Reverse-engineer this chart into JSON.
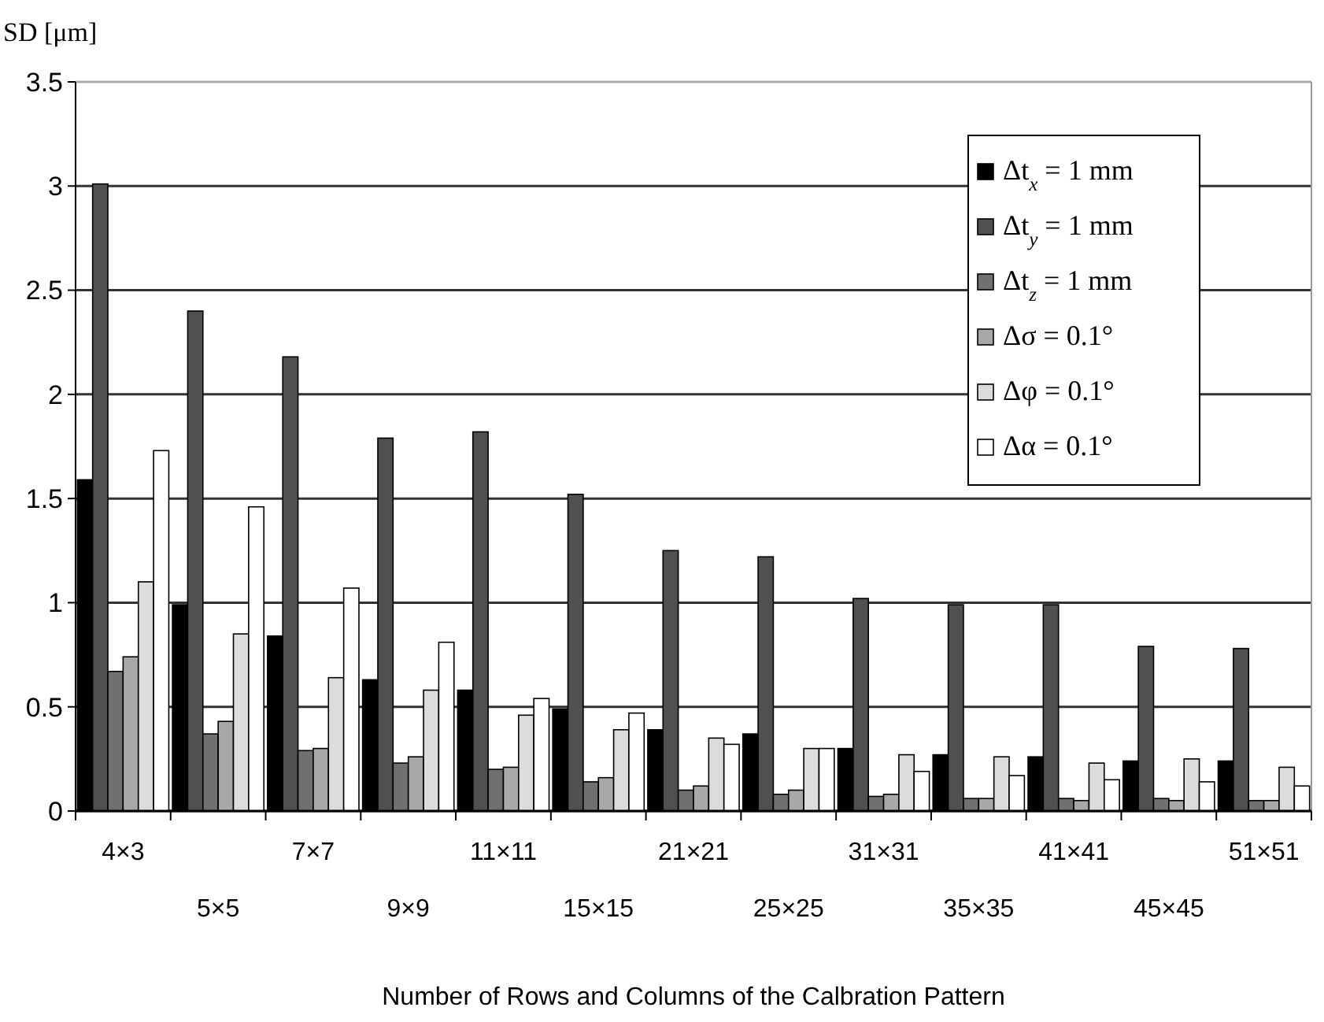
{
  "chart_data": {
    "type": "bar",
    "xlabel": "Number of Rows and Columns of the Calbration Pattern",
    "ylabel": "SD [μm]",
    "categories": [
      "4×3",
      "5×5",
      "7×7",
      "9×9",
      "11×11",
      "15×15",
      "21×21",
      "25×25",
      "31×31",
      "35×35",
      "41×41",
      "45×45",
      "51×51"
    ],
    "series": [
      {
        "name": "Δt$_{x}$ = 1 mm",
        "color": "#000000",
        "values": [
          1.59,
          0.99,
          0.84,
          0.63,
          0.58,
          0.49,
          0.39,
          0.37,
          0.3,
          0.27,
          0.26,
          0.24,
          0.24
        ]
      },
      {
        "name": "Δt$_{y}$ = 1 mm",
        "color": "#505050",
        "values": [
          3.01,
          2.4,
          2.18,
          1.79,
          1.82,
          1.52,
          1.25,
          1.22,
          1.02,
          0.99,
          0.99,
          0.79,
          0.78
        ]
      },
      {
        "name": "Δt$_{z}$ = 1 mm",
        "color": "#707070",
        "values": [
          0.67,
          0.37,
          0.29,
          0.23,
          0.2,
          0.14,
          0.1,
          0.08,
          0.07,
          0.06,
          0.06,
          0.06,
          0.05
        ]
      },
      {
        "name": "Δσ = 0.1°",
        "color": "#a8a8a8",
        "values": [
          0.74,
          0.43,
          0.3,
          0.26,
          0.21,
          0.16,
          0.12,
          0.1,
          0.08,
          0.06,
          0.05,
          0.05,
          0.05
        ]
      },
      {
        "name": "Δφ = 0.1°",
        "color": "#dcdcdc",
        "values": [
          1.1,
          0.85,
          0.64,
          0.58,
          0.46,
          0.39,
          0.35,
          0.3,
          0.27,
          0.26,
          0.23,
          0.25,
          0.21
        ]
      },
      {
        "name": "Δα = 0.1°",
        "color": "#ffffff",
        "values": [
          1.73,
          1.46,
          1.07,
          0.81,
          0.54,
          0.47,
          0.32,
          0.3,
          0.19,
          0.17,
          0.15,
          0.14,
          0.12
        ]
      }
    ],
    "ylim": [
      0,
      3.5
    ],
    "yticks": [
      0,
      0.5,
      1,
      1.5,
      2,
      2.5,
      3,
      3.5
    ],
    "grid": "y",
    "legend": "top right"
  }
}
